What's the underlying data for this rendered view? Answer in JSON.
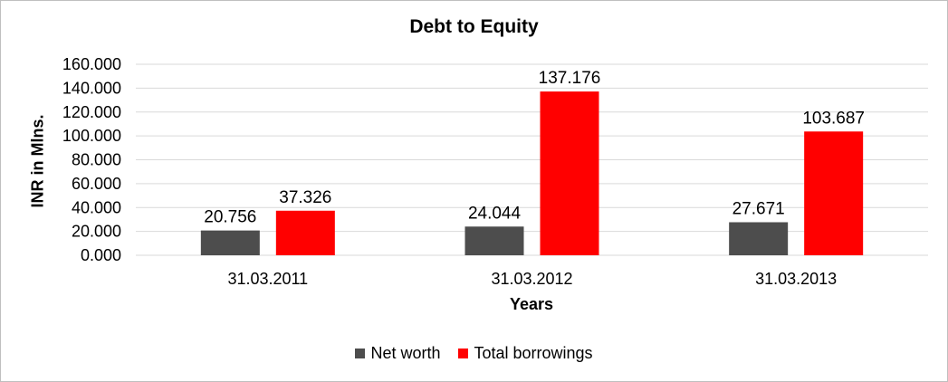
{
  "chart_data": {
    "type": "bar",
    "title": "Debt to Equity",
    "xlabel": "Years",
    "ylabel": "INR in Mlns.",
    "categories": [
      "31.03.2011",
      "31.03.2012",
      "31.03.2013"
    ],
    "series": [
      {
        "name": "Net worth",
        "values": [
          20.756,
          24.044,
          27.671
        ],
        "labels": [
          "20.756",
          "24.044",
          "27.671"
        ],
        "color": "#4d4d4d"
      },
      {
        "name": "Total borrowings",
        "values": [
          37.326,
          137.176,
          103.687
        ],
        "labels": [
          "37.326",
          "137.176",
          "103.687"
        ],
        "color": "#ff0000"
      }
    ],
    "ylim": [
      0,
      160
    ],
    "yticks": [
      0,
      20,
      40,
      60,
      80,
      100,
      120,
      140,
      160
    ],
    "ytick_labels": [
      "0.000",
      "20.000",
      "40.000",
      "60.000",
      "80.000",
      "100.000",
      "120.000",
      "140.000",
      "160.000"
    ],
    "grid": true,
    "legend_position": "bottom"
  }
}
